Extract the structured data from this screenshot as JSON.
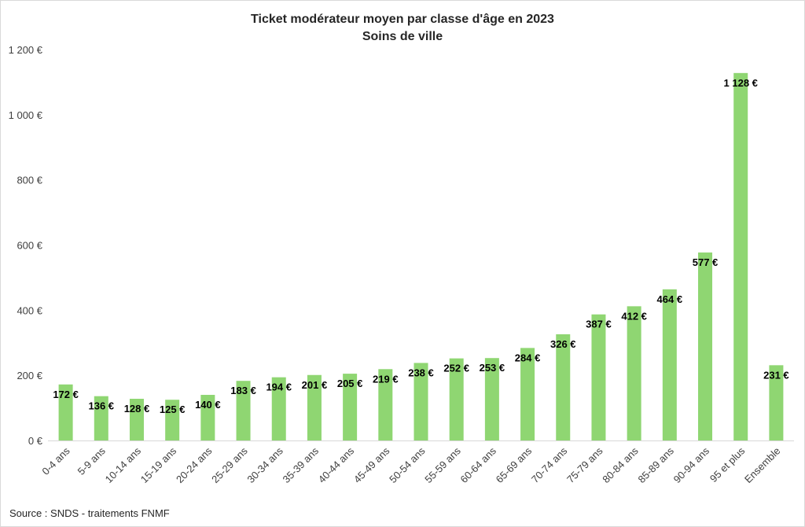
{
  "chart_data": {
    "type": "bar",
    "title": "Ticket modérateur moyen par classe d'âge en 2023",
    "subtitle": "Soins de ville",
    "categories": [
      "0-4 ans",
      "5-9 ans",
      "10-14 ans",
      "15-19 ans",
      "20-24 ans",
      "25-29 ans",
      "30-34 ans",
      "35-39 ans",
      "40-44 ans",
      "45-49 ans",
      "50-54 ans",
      "55-59 ans",
      "60-64 ans",
      "65-69 ans",
      "70-74 ans",
      "75-79 ans",
      "80-84 ans",
      "85-89 ans",
      "90-94 ans",
      "95 et plus",
      "Ensemble"
    ],
    "values": [
      172,
      136,
      128,
      125,
      140,
      183,
      194,
      201,
      205,
      219,
      238,
      252,
      253,
      284,
      326,
      387,
      412,
      464,
      577,
      1128,
      231
    ],
    "data_labels": [
      "172 €",
      "136 €",
      "128 €",
      "125 €",
      "140 €",
      "183 €",
      "194 €",
      "201 €",
      "205 €",
      "219 €",
      "238 €",
      "252 €",
      "253 €",
      "284 €",
      "326 €",
      "387 €",
      "412 €",
      "464 €",
      "577 €",
      "1 128 €",
      "231 €"
    ],
    "ylim": [
      0,
      1200
    ],
    "y_ticks": [
      0,
      200,
      400,
      600,
      800,
      1000,
      1200
    ],
    "y_tick_labels": [
      "0 €",
      "200 €",
      "400 €",
      "600 €",
      "800 €",
      "1 000 €",
      "1 200 €"
    ],
    "grid": false,
    "bar_color": "#8fd672",
    "source": "Source : SNDS - traitements FNMF"
  }
}
